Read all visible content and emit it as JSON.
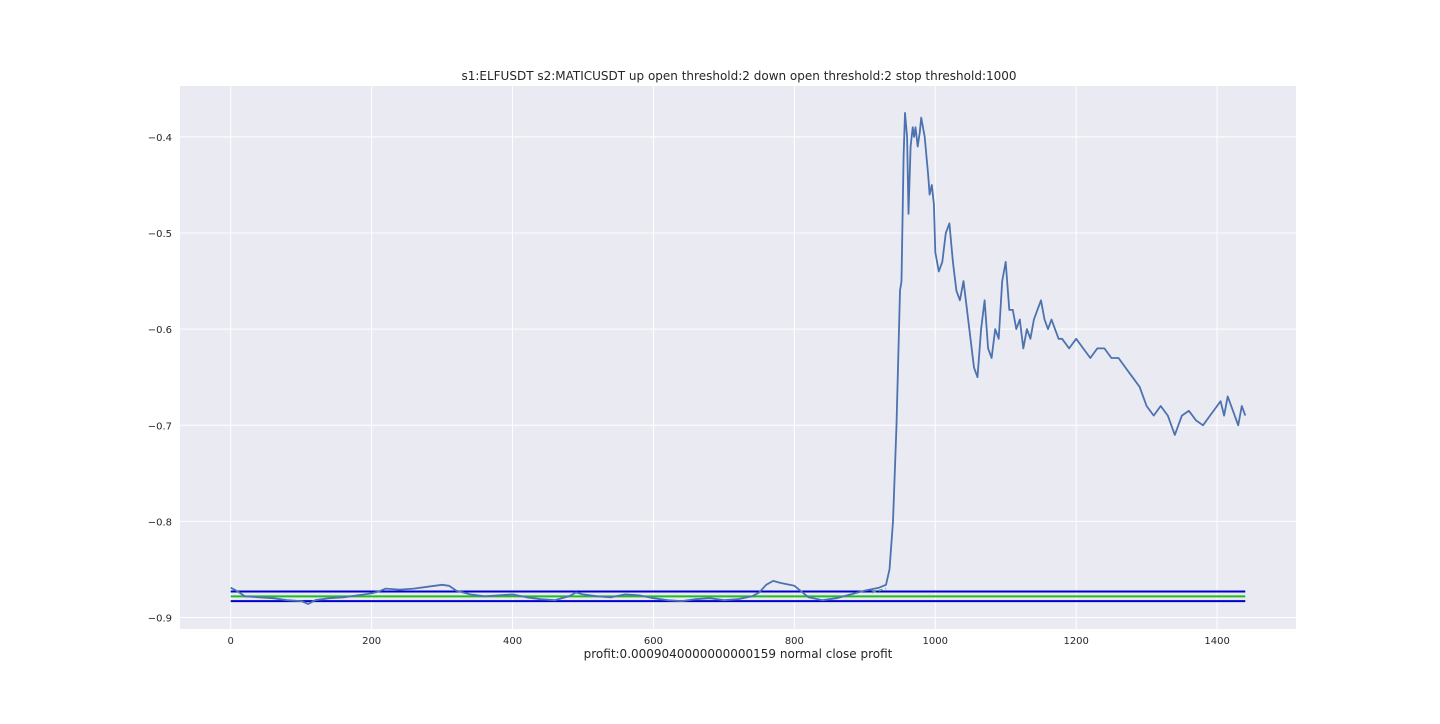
{
  "chart_data": {
    "type": "line",
    "title": "s1:ELFUSDT s2:MATICUSDT up open threshold:2 down open threshold:2 stop threshold:1000",
    "xlabel": "profit:0.0009040000000000159 normal close profit",
    "ylabel": "",
    "xlim": [
      -72,
      1512
    ],
    "ylim": [
      -0.912,
      -0.347
    ],
    "xticks": [
      0,
      200,
      400,
      600,
      800,
      1000,
      1200,
      1400
    ],
    "xtick_labels": [
      "0",
      "200",
      "400",
      "600",
      "800",
      "1000",
      "1200",
      "1400"
    ],
    "yticks": [
      -0.9,
      -0.8,
      -0.7,
      -0.6,
      -0.5,
      -0.4
    ],
    "ytick_labels": [
      "−0.9",
      "−0.8",
      "−0.7",
      "−0.6",
      "−0.5",
      "−0.4"
    ],
    "grid": true,
    "legend": "none",
    "series": [
      {
        "color": "#4c72b0",
        "style": "solid",
        "x": [
          0,
          10,
          20,
          40,
          60,
          80,
          100,
          110,
          120,
          140,
          160,
          180,
          200,
          210,
          220,
          240,
          260,
          280,
          300,
          310,
          320,
          340,
          360,
          380,
          400,
          420,
          440,
          460,
          480,
          490,
          500,
          520,
          540,
          560,
          580,
          600,
          620,
          640,
          660,
          680,
          700,
          720,
          740,
          750,
          760,
          770,
          780,
          800,
          820,
          840,
          860,
          880,
          900,
          920,
          930,
          935,
          940,
          945,
          950,
          952,
          955,
          957,
          960,
          962,
          965,
          968,
          970,
          972,
          975,
          978,
          980,
          985,
          990,
          992,
          995,
          998,
          1000,
          1005,
          1010,
          1015,
          1020,
          1025,
          1030,
          1035,
          1040,
          1045,
          1050,
          1055,
          1060,
          1065,
          1070,
          1075,
          1080,
          1085,
          1090,
          1095,
          1100,
          1105,
          1110,
          1115,
          1120,
          1125,
          1130,
          1135,
          1140,
          1145,
          1150,
          1155,
          1160,
          1165,
          1170,
          1175,
          1180,
          1190,
          1200,
          1210,
          1220,
          1230,
          1240,
          1250,
          1260,
          1270,
          1280,
          1290,
          1300,
          1310,
          1320,
          1330,
          1340,
          1350,
          1360,
          1370,
          1380,
          1390,
          1400,
          1405,
          1410,
          1415,
          1420,
          1425,
          1430,
          1435,
          1440
        ],
        "y": [
          -0.869,
          -0.873,
          -0.878,
          -0.879,
          -0.88,
          -0.882,
          -0.883,
          -0.886,
          -0.882,
          -0.88,
          -0.879,
          -0.877,
          -0.875,
          -0.873,
          -0.87,
          -0.871,
          -0.87,
          -0.868,
          -0.866,
          -0.867,
          -0.872,
          -0.876,
          -0.878,
          -0.877,
          -0.876,
          -0.879,
          -0.881,
          -0.882,
          -0.878,
          -0.874,
          -0.876,
          -0.878,
          -0.879,
          -0.876,
          -0.877,
          -0.88,
          -0.882,
          -0.883,
          -0.881,
          -0.88,
          -0.882,
          -0.881,
          -0.878,
          -0.874,
          -0.866,
          -0.862,
          -0.864,
          -0.867,
          -0.879,
          -0.882,
          -0.88,
          -0.876,
          -0.872,
          -0.869,
          -0.866,
          -0.85,
          -0.8,
          -0.7,
          -0.56,
          -0.55,
          -0.42,
          -0.375,
          -0.4,
          -0.48,
          -0.41,
          -0.39,
          -0.4,
          -0.39,
          -0.41,
          -0.395,
          -0.38,
          -0.4,
          -0.44,
          -0.46,
          -0.45,
          -0.47,
          -0.52,
          -0.54,
          -0.53,
          -0.5,
          -0.49,
          -0.53,
          -0.56,
          -0.57,
          -0.55,
          -0.58,
          -0.61,
          -0.64,
          -0.65,
          -0.6,
          -0.57,
          -0.62,
          -0.63,
          -0.6,
          -0.61,
          -0.55,
          -0.53,
          -0.58,
          -0.58,
          -0.6,
          -0.59,
          -0.62,
          -0.6,
          -0.61,
          -0.59,
          -0.58,
          -0.57,
          -0.59,
          -0.6,
          -0.59,
          -0.6,
          -0.61,
          -0.61,
          -0.62,
          -0.61,
          -0.62,
          -0.63,
          -0.62,
          -0.62,
          -0.63,
          -0.63,
          -0.64,
          -0.65,
          -0.66,
          -0.68,
          -0.69,
          -0.68,
          -0.69,
          -0.71,
          -0.69,
          -0.685,
          -0.695,
          -0.7,
          -0.69,
          -0.68,
          -0.675,
          -0.69,
          -0.67,
          -0.68,
          -0.69,
          -0.7,
          -0.68,
          -0.69
        ]
      },
      {
        "color": "#55a868",
        "style": "dashed",
        "x": [
          910,
          920,
          930
        ],
        "y": [
          -0.874,
          -0.872,
          -0.87
        ]
      }
    ],
    "hlines": [
      {
        "y": -0.873,
        "color": "#0000cc",
        "xmin": 0,
        "xmax": 1440
      },
      {
        "y": -0.878,
        "color": "#22bb22",
        "xmin": 0,
        "xmax": 1440
      },
      {
        "y": -0.883,
        "color": "#0000cc",
        "xmin": 0,
        "xmax": 1440
      }
    ],
    "colors": {
      "plot_background": "#eaeaf2",
      "grid": "#ffffff",
      "text": "#262626"
    }
  }
}
